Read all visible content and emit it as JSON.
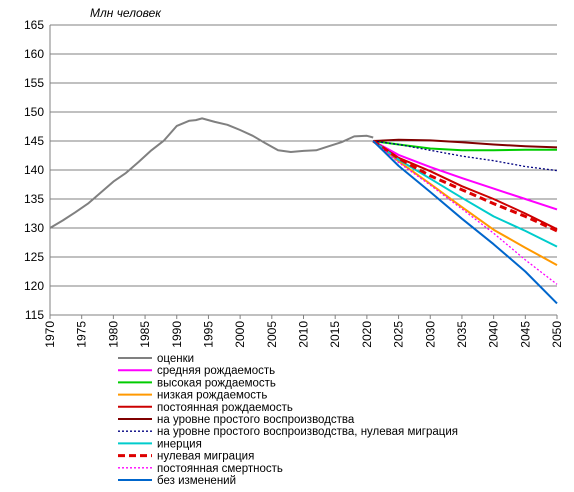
{
  "chart_data": {
    "type": "line",
    "title": "",
    "ylabel": "Млн человек",
    "xlabel": "",
    "xlim": [
      1970,
      2050
    ],
    "ylim": [
      115,
      165
    ],
    "x_ticks": [
      "1970",
      "1975",
      "1980",
      "1985",
      "1990",
      "1995",
      "2000",
      "2005",
      "2010",
      "2015",
      "2020",
      "2025",
      "2030",
      "2035",
      "2040",
      "2045",
      "2050"
    ],
    "y_ticks": [
      "115",
      "120",
      "125",
      "130",
      "135",
      "140",
      "145",
      "150",
      "155",
      "160",
      "165"
    ],
    "grid": "horizontal",
    "legend_position": "bottom",
    "series": [
      {
        "name": "оценки",
        "color": "#808080",
        "dash": "solid",
        "width": 2,
        "points": [
          [
            1970,
            130.0
          ],
          [
            1972,
            131.3
          ],
          [
            1974,
            132.7
          ],
          [
            1976,
            134.2
          ],
          [
            1978,
            136.1
          ],
          [
            1980,
            138.0
          ],
          [
            1982,
            139.5
          ],
          [
            1984,
            141.4
          ],
          [
            1986,
            143.4
          ],
          [
            1988,
            145.1
          ],
          [
            1990,
            147.6
          ],
          [
            1992,
            148.5
          ],
          [
            1993,
            148.6
          ],
          [
            1994,
            148.9
          ],
          [
            1995,
            148.6
          ],
          [
            1996,
            148.3
          ],
          [
            1998,
            147.8
          ],
          [
            2000,
            146.9
          ],
          [
            2002,
            145.9
          ],
          [
            2004,
            144.6
          ],
          [
            2006,
            143.4
          ],
          [
            2008,
            143.1
          ],
          [
            2010,
            143.3
          ],
          [
            2012,
            143.4
          ],
          [
            2014,
            144.1
          ],
          [
            2016,
            144.8
          ],
          [
            2018,
            145.8
          ],
          [
            2020,
            145.9
          ],
          [
            2021,
            145.6
          ]
        ]
      },
      {
        "name": "средняя рождаемость",
        "color": "#ff00ff",
        "dash": "solid",
        "width": 2,
        "points": [
          [
            2021,
            145.0
          ],
          [
            2025,
            142.6
          ],
          [
            2030,
            140.5
          ],
          [
            2035,
            138.6
          ],
          [
            2040,
            136.8
          ],
          [
            2045,
            135.0
          ],
          [
            2050,
            133.2
          ]
        ]
      },
      {
        "name": "высокая рождаемость",
        "color": "#00cc00",
        "dash": "solid",
        "width": 2,
        "points": [
          [
            2021,
            145.0
          ],
          [
            2025,
            144.4
          ],
          [
            2030,
            143.7
          ],
          [
            2035,
            143.4
          ],
          [
            2040,
            143.4
          ],
          [
            2045,
            143.5
          ],
          [
            2050,
            143.5
          ]
        ]
      },
      {
        "name": "низкая рождаемость",
        "color": "#ff9900",
        "dash": "solid",
        "width": 2,
        "points": [
          [
            2021,
            145.0
          ],
          [
            2025,
            141.5
          ],
          [
            2030,
            137.6
          ],
          [
            2035,
            133.6
          ],
          [
            2040,
            129.7
          ],
          [
            2045,
            126.6
          ],
          [
            2050,
            123.6
          ]
        ]
      },
      {
        "name": "постоянная рождаемость",
        "color": "#cc0000",
        "dash": "solid",
        "width": 2,
        "points": [
          [
            2021,
            145.0
          ],
          [
            2025,
            142.1
          ],
          [
            2030,
            139.8
          ],
          [
            2035,
            137.2
          ],
          [
            2040,
            135.0
          ],
          [
            2045,
            132.5
          ],
          [
            2050,
            129.8
          ]
        ]
      },
      {
        "name": "на уровне простого воспроизводства",
        "color": "#800000",
        "dash": "solid",
        "width": 2,
        "points": [
          [
            2021,
            145.0
          ],
          [
            2025,
            145.2
          ],
          [
            2030,
            145.1
          ],
          [
            2035,
            144.8
          ],
          [
            2040,
            144.4
          ],
          [
            2045,
            144.1
          ],
          [
            2050,
            143.9
          ]
        ]
      },
      {
        "name": "на уровне простого воспроизводства, нулевая миграция",
        "color": "#000080",
        "dash": "dotted",
        "width": 1.3,
        "points": [
          [
            2021,
            145.0
          ],
          [
            2025,
            144.4
          ],
          [
            2030,
            143.4
          ],
          [
            2035,
            142.4
          ],
          [
            2040,
            141.6
          ],
          [
            2045,
            140.6
          ],
          [
            2050,
            139.9
          ]
        ]
      },
      {
        "name": "инерция",
        "color": "#00cccc",
        "dash": "solid",
        "width": 2,
        "points": [
          [
            2021,
            145.0
          ],
          [
            2025,
            141.8
          ],
          [
            2030,
            138.5
          ],
          [
            2035,
            135.2
          ],
          [
            2040,
            132.0
          ],
          [
            2045,
            129.5
          ],
          [
            2050,
            126.8
          ]
        ]
      },
      {
        "name": "нулевая миграция",
        "color": "#dd0000",
        "dash": "dashed",
        "width": 3,
        "points": [
          [
            2021,
            145.0
          ],
          [
            2025,
            142.0
          ],
          [
            2030,
            139.0
          ],
          [
            2035,
            136.6
          ],
          [
            2040,
            134.2
          ],
          [
            2045,
            132.0
          ],
          [
            2050,
            129.5
          ]
        ]
      },
      {
        "name": "постоянная смертность",
        "color": "#ff00ff",
        "dash": "dotted",
        "width": 1.3,
        "points": [
          [
            2021,
            145.0
          ],
          [
            2025,
            141.3
          ],
          [
            2030,
            137.4
          ],
          [
            2035,
            133.3
          ],
          [
            2040,
            129.1
          ],
          [
            2045,
            124.5
          ],
          [
            2050,
            120.3
          ]
        ]
      },
      {
        "name": "без изменений",
        "color": "#0066cc",
        "dash": "solid",
        "width": 2,
        "points": [
          [
            2021,
            145.0
          ],
          [
            2025,
            140.7
          ],
          [
            2030,
            136.2
          ],
          [
            2035,
            131.6
          ],
          [
            2040,
            127.2
          ],
          [
            2045,
            122.5
          ],
          [
            2050,
            117.0
          ]
        ]
      }
    ]
  }
}
